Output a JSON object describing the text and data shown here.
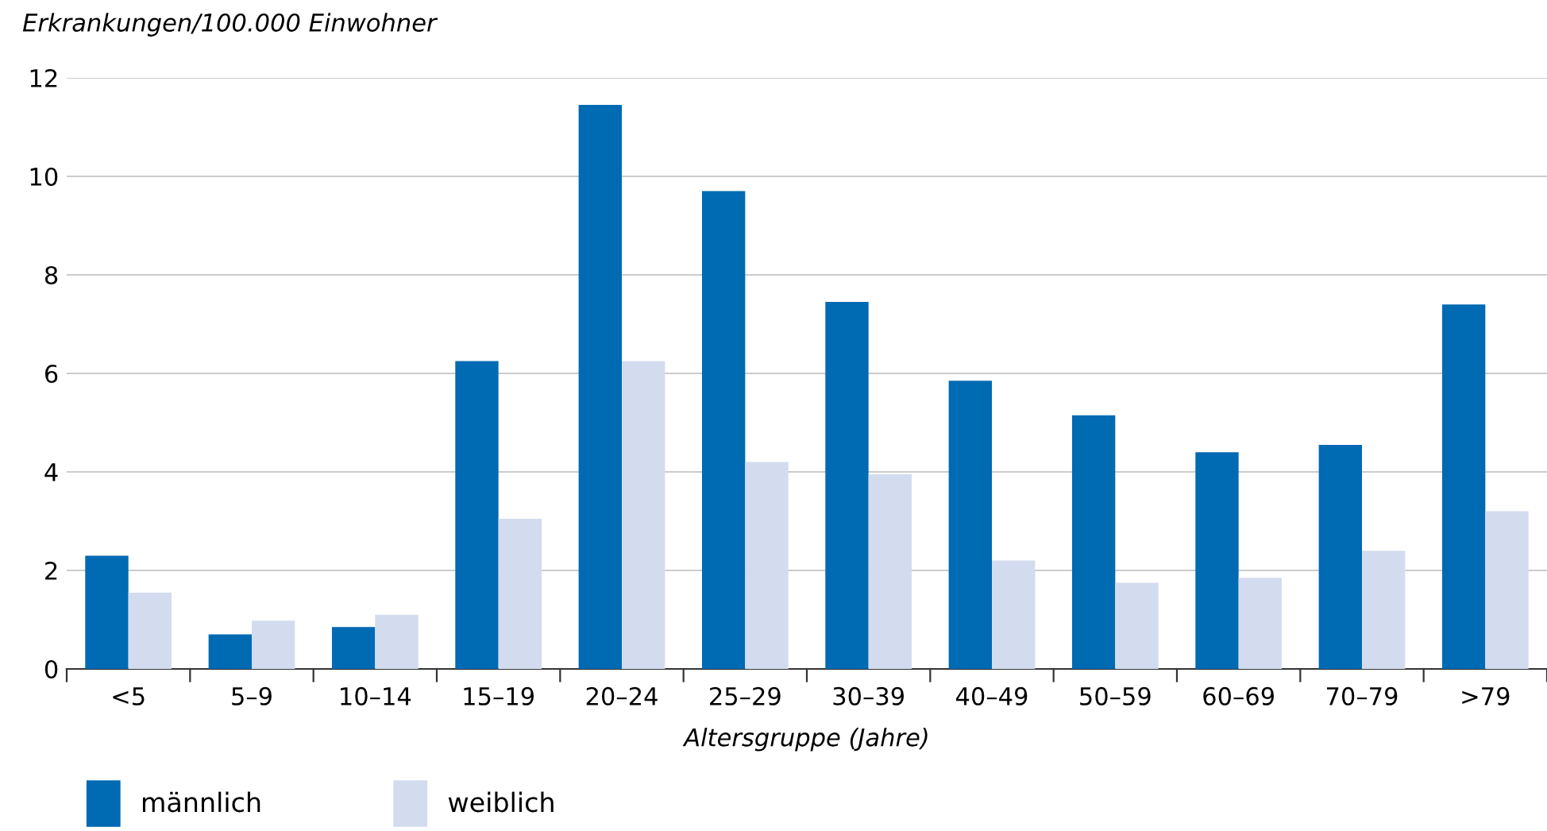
{
  "chart_data": {
    "type": "bar",
    "ylabel": "Erkrankungen/100.000 Einwohner",
    "xlabel": "Altersgruppe (Jahre)",
    "categories": [
      "<5",
      "5–9",
      "10–14",
      "15–19",
      "20–24",
      "25–29",
      "30–39",
      "40–49",
      "50–59",
      "60–69",
      "70–79",
      ">79"
    ],
    "series": [
      {
        "name": "männlich",
        "color": "#006ab3",
        "values": [
          2.3,
          0.7,
          0.85,
          6.25,
          11.45,
          9.7,
          7.45,
          5.85,
          5.15,
          4.4,
          4.55,
          7.4
        ]
      },
      {
        "name": "weiblich",
        "color": "#d3dcee",
        "values": [
          1.55,
          0.98,
          1.1,
          3.05,
          6.25,
          4.2,
          3.95,
          2.2,
          1.75,
          1.85,
          2.4,
          3.2
        ]
      }
    ],
    "ylim": [
      0,
      12
    ],
    "yticks": [
      0,
      2,
      4,
      6,
      8,
      10,
      12
    ],
    "grid": "y",
    "legend": "bottom"
  }
}
